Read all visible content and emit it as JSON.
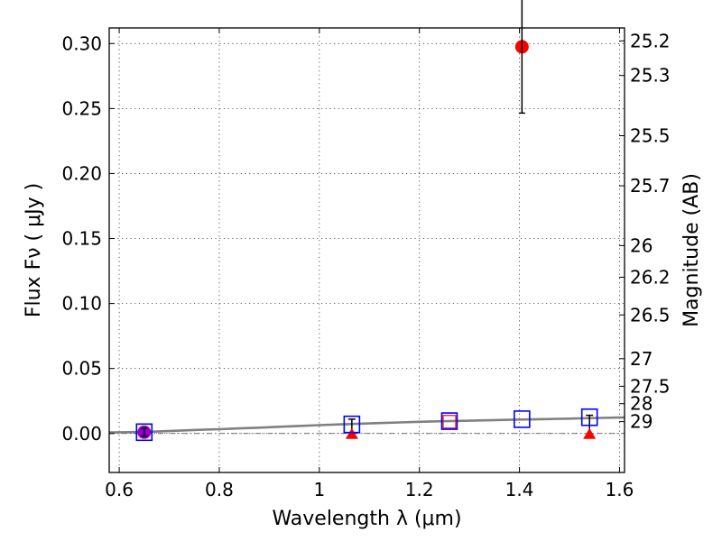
{
  "chart_data": {
    "type": "scatter",
    "xlabel": "Wavelength  λ (μm)",
    "ylabel": "Flux  Fν  ( μJy )",
    "ylabel_right": "Magnitude (AB)",
    "xlim": [
      0.58,
      1.61
    ],
    "ylim": [
      -0.03,
      0.312
    ],
    "grid": true,
    "x_ticks": [
      {
        "value": 0.6,
        "label": "0.6"
      },
      {
        "value": 0.8,
        "label": "0.8"
      },
      {
        "value": 1.0,
        "label": "1"
      },
      {
        "value": 1.2,
        "label": "1.2"
      },
      {
        "value": 1.4,
        "label": "1.4"
      },
      {
        "value": 1.6,
        "label": "1.6"
      }
    ],
    "y_ticks": [
      {
        "value": 0.0,
        "label": "0.00"
      },
      {
        "value": 0.05,
        "label": "0.05"
      },
      {
        "value": 0.1,
        "label": "0.10"
      },
      {
        "value": 0.15,
        "label": "0.15"
      },
      {
        "value": 0.2,
        "label": "0.20"
      },
      {
        "value": 0.25,
        "label": "0.25"
      },
      {
        "value": 0.3,
        "label": "0.30"
      }
    ],
    "y2_ticks": [
      {
        "value": 25.2,
        "label": "25.2"
      },
      {
        "value": 25.3,
        "label": "25.3"
      },
      {
        "value": 25.5,
        "label": "25.5"
      },
      {
        "value": 25.7,
        "label": "25.7"
      },
      {
        "value": 26,
        "label": "26"
      },
      {
        "value": 26.2,
        "label": "26.2"
      },
      {
        "value": 26.5,
        "label": "26.5"
      },
      {
        "value": 27,
        "label": "27"
      },
      {
        "value": 27.5,
        "label": "27.5"
      },
      {
        "value": 28,
        "label": "28"
      },
      {
        "value": 29,
        "label": "29"
      }
    ],
    "zero_line_y": 0,
    "model_spectrum": {
      "color": "#808080",
      "x": [
        0.58,
        0.62,
        0.65,
        0.68,
        0.72,
        0.76,
        0.8,
        0.84,
        0.88,
        0.92,
        0.96,
        1.0,
        1.04,
        1.08,
        1.12,
        1.16,
        1.2,
        1.24,
        1.28,
        1.32,
        1.36,
        1.4,
        1.44,
        1.48,
        1.52,
        1.56,
        1.61
      ],
      "y": [
        0.0008,
        0.001,
        0.0012,
        0.0016,
        0.0022,
        0.0028,
        0.0033,
        0.0039,
        0.0045,
        0.0052,
        0.0058,
        0.0064,
        0.007,
        0.0075,
        0.008,
        0.0085,
        0.009,
        0.0094,
        0.0097,
        0.01,
        0.0104,
        0.0107,
        0.011,
        0.0113,
        0.0116,
        0.012,
        0.0124
      ]
    },
    "model_points": {
      "color": "#0000ff",
      "points": [
        {
          "x": 0.65,
          "y": 0.001
        },
        {
          "x": 1.065,
          "y": 0.007
        },
        {
          "x": 1.26,
          "y": 0.0095
        },
        {
          "x": 1.405,
          "y": 0.011
        },
        {
          "x": 1.54,
          "y": 0.0125
        }
      ]
    },
    "observed_detections": {
      "color": "#ff0000",
      "points": [
        {
          "x": 0.65,
          "y": 0.001,
          "err": 0.003,
          "color": "#9900cc"
        },
        {
          "x": 1.405,
          "y": 0.2975,
          "err": 0.051,
          "color": "#ff0000"
        }
      ]
    },
    "upper_limits": {
      "color": "#ff0000",
      "points": [
        {
          "x": 1.065,
          "y": 0.0,
          "err_top": 0.011
        },
        {
          "x": 1.54,
          "y": 0.0,
          "err_top": 0.014
        }
      ]
    },
    "excluded_points": {
      "color": "#ff0000",
      "points": [
        {
          "x": 1.26,
          "y": 0.009
        }
      ]
    }
  }
}
